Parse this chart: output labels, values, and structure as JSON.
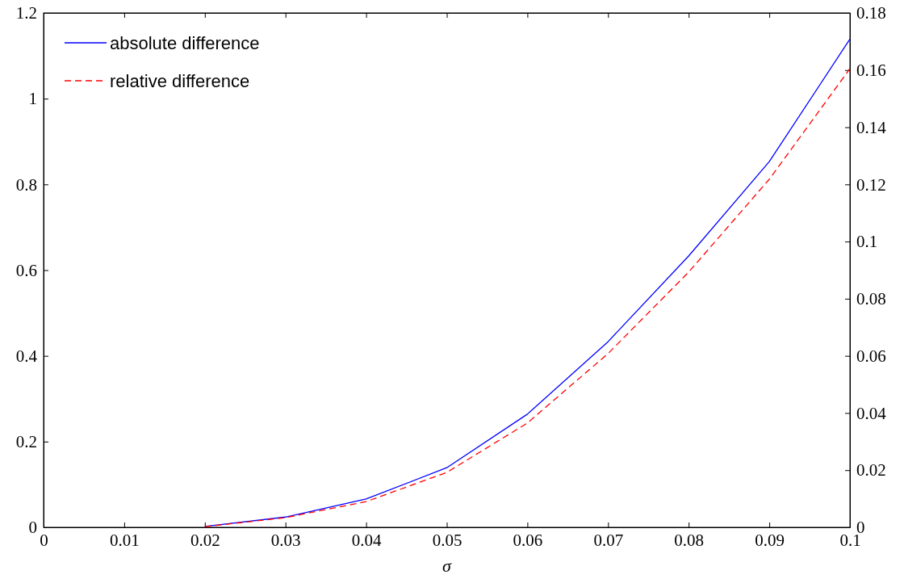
{
  "chart_data": {
    "type": "line",
    "xlabel": "σ",
    "xlim": [
      0,
      0.1
    ],
    "xticks": [
      0,
      0.01,
      0.02,
      0.03,
      0.04,
      0.05,
      0.06,
      0.07,
      0.08,
      0.09,
      0.1
    ],
    "ylim": [
      0,
      1.2
    ],
    "yticks": [
      0,
      0.2,
      0.4,
      0.6,
      0.8,
      1,
      1.2
    ],
    "y2lim": [
      0,
      0.18
    ],
    "y2ticks": [
      0,
      0.02,
      0.04,
      0.06,
      0.08,
      0.1,
      0.12,
      0.14,
      0.16,
      0.18
    ],
    "legend": "top left",
    "grid": false,
    "marker": "none",
    "series": [
      {
        "name": "absolute difference",
        "color": "#0000ff",
        "line_style": "solid",
        "x": [
          0.02,
          0.03,
          0.04,
          0.05,
          0.06,
          0.07,
          0.08,
          0.09,
          0.1
        ],
        "values": [
          0.002,
          0.024,
          0.066,
          0.139,
          0.264,
          0.433,
          0.633,
          0.853,
          1.139
        ]
      },
      {
        "name": "relative difference",
        "color": "#ff0000",
        "line_style": "dashed",
        "axis": "y2",
        "x": [
          0.02,
          0.03,
          0.04,
          0.05,
          0.06,
          0.07,
          0.08,
          0.09,
          0.1
        ],
        "values": [
          0.0002,
          0.0034,
          0.009,
          0.0192,
          0.0365,
          0.0608,
          0.0893,
          0.1218,
          0.1605
        ]
      }
    ]
  }
}
